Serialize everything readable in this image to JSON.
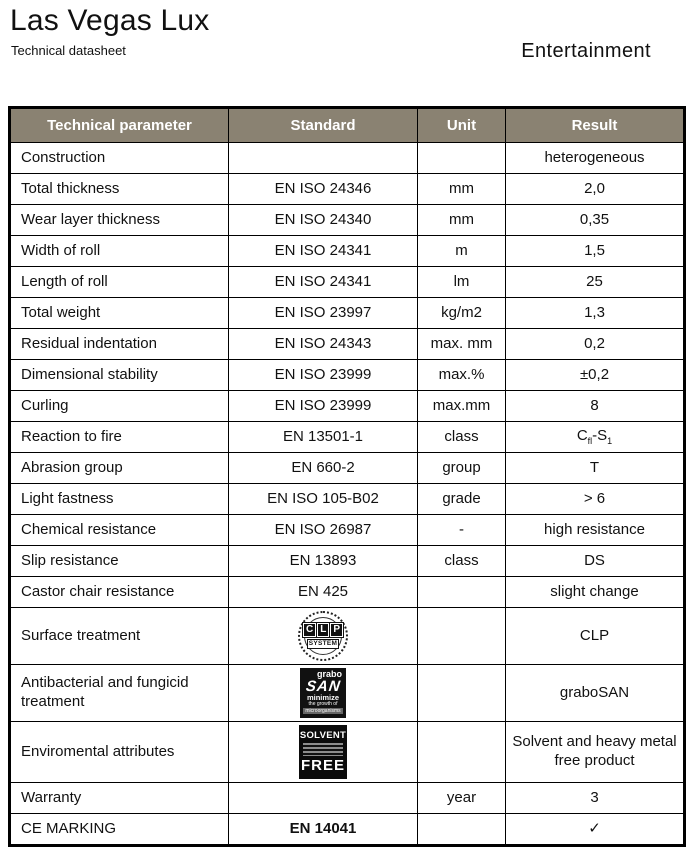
{
  "header": {
    "title": "Las Vegas Lux",
    "subtitle": "Technical datasheet",
    "category": "Entertainment"
  },
  "colors": {
    "table_header_bg": "#8a8272",
    "table_header_text": "#ffffff",
    "border": "#000000"
  },
  "table": {
    "columns": [
      "Technical parameter",
      "Standard",
      "Unit",
      "Result"
    ],
    "rows": [
      {
        "parameter": "Construction",
        "standard": "",
        "unit": "",
        "result": "heterogeneous"
      },
      {
        "parameter": "Total thickness",
        "standard": "EN ISO 24346",
        "unit": "mm",
        "result": "2,0"
      },
      {
        "parameter": "Wear layer thickness",
        "standard": "EN ISO 24340",
        "unit": "mm",
        "result": "0,35"
      },
      {
        "parameter": "Width of roll",
        "standard": "EN ISO 24341",
        "unit": "m",
        "result": "1,5"
      },
      {
        "parameter": "Length of roll",
        "standard": "EN ISO 24341",
        "unit": "lm",
        "result": "25"
      },
      {
        "parameter": "Total weight",
        "standard": "EN ISO 23997",
        "unit": "kg/m2",
        "result": "1,3"
      },
      {
        "parameter": "Residual indentation",
        "standard": "EN ISO 24343",
        "unit": "max. mm",
        "result": "0,2"
      },
      {
        "parameter": "Dimensional stability",
        "standard": "EN ISO 23999",
        "unit": "max.%",
        "result": "±0,2"
      },
      {
        "parameter": "Curling",
        "standard": "EN ISO 23999",
        "unit": "max.mm",
        "result": "8"
      },
      {
        "parameter": "Reaction to fire",
        "standard": "EN 13501-1",
        "unit": "class",
        "result": "C~fl~-S~1~"
      },
      {
        "parameter": "Abrasion group",
        "standard": "EN 660-2",
        "unit": "group",
        "result": "T"
      },
      {
        "parameter": "Light fastness",
        "standard": "EN ISO 105-B02",
        "unit": "grade",
        "result": "> 6"
      },
      {
        "parameter": "Chemical resistance",
        "standard": "EN ISO 26987",
        "unit": "-",
        "result": "high resistance"
      },
      {
        "parameter": "Slip resistance",
        "standard": "EN 13893",
        "unit": "class",
        "result": "DS"
      },
      {
        "parameter": "Castor chair resistance",
        "standard": "EN 425",
        "unit": "",
        "result": "slight change"
      },
      {
        "parameter": "Surface treatment",
        "standard": "",
        "standard_logo": "clp_system",
        "unit": "",
        "result": "CLP"
      },
      {
        "parameter": "Antibacterial and fungicid treatment",
        "standard": "",
        "standard_logo": "grabosan",
        "unit": "",
        "result": "graboSAN"
      },
      {
        "parameter": "Enviromental attributes",
        "standard": "",
        "standard_logo": "solvent_free",
        "unit": "",
        "result": "Solvent and heavy metal free product"
      },
      {
        "parameter": "Warranty",
        "standard": "",
        "unit": "year",
        "result": "3"
      },
      {
        "parameter": "CE MARKING",
        "standard": "EN 14041",
        "standard_bold": true,
        "unit": "",
        "result": "✓"
      }
    ]
  },
  "logos": {
    "clp_system": {
      "icon_name": "clp-system-seal-icon",
      "letters": "CLP",
      "caption": "SYSTEM"
    },
    "grabosan": {
      "icon_name": "grabosan-logo-icon",
      "brand": "grabo",
      "main": "SAN",
      "line1": "minimize",
      "line2": "the growth of",
      "line3": "microorganisms"
    },
    "solvent_free": {
      "icon_name": "solvent-free-logo-icon",
      "top": "SOLVENT",
      "bottom": "FREE"
    }
  }
}
